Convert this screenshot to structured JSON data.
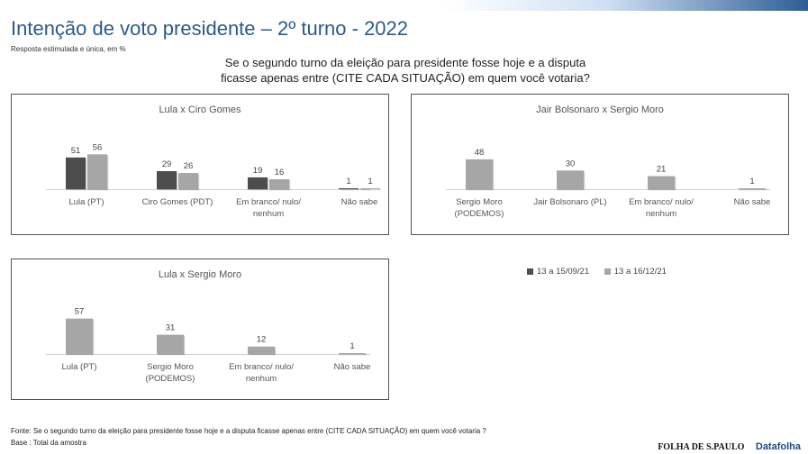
{
  "header": {
    "title": "Intenção de voto presidente – 2º turno - 2022",
    "subtitle": "Resposta estimulada e única, em %",
    "question_line1": "Se o segundo turno da eleição para presidente fosse hoje e a disputa",
    "question_line2": "ficasse apenas entre (CITE CADA SITUAÇÃO) em quem você votaria?"
  },
  "legend": {
    "items": [
      {
        "label": "13 a 15/09/21",
        "color": "#4d4d4d"
      },
      {
        "label": "13 a 16/12/21",
        "color": "#a6a6a6"
      }
    ]
  },
  "colors": {
    "title": "#2b5a8c",
    "series_dark": "#4d4d4d",
    "series_light": "#a6a6a6"
  },
  "chart_data": [
    {
      "type": "bar",
      "title": "Lula x Ciro Gomes",
      "categories": [
        [
          "Lula (PT)"
        ],
        [
          "Ciro Gomes (PDT)"
        ],
        [
          "Em branco/ nulo/",
          "nenhum"
        ],
        [
          "Não sabe"
        ]
      ],
      "series": [
        {
          "name": "13 a 15/09/21",
          "values": [
            51,
            29,
            19,
            1
          ]
        },
        {
          "name": "13 a 16/12/21",
          "values": [
            56,
            26,
            16,
            1
          ]
        }
      ]
    },
    {
      "type": "bar",
      "title": "Jair Bolsonaro x Sergio Moro",
      "categories": [
        [
          "Sergio Moro",
          "(PODEMOS)"
        ],
        [
          "Jair Bolsonaro (PL)"
        ],
        [
          "Em branco/ nulo/",
          "nenhum"
        ],
        [
          "Não sabe"
        ]
      ],
      "series": [
        {
          "name": "13 a 16/12/21",
          "values": [
            48,
            30,
            21,
            1
          ]
        }
      ]
    },
    {
      "type": "bar",
      "title": "Lula x Sergio Moro",
      "categories": [
        [
          "Lula (PT)"
        ],
        [
          "Sergio Moro",
          "(PODEMOS)"
        ],
        [
          "Em branco/ nulo/",
          "nenhum"
        ],
        [
          "Não sabe"
        ]
      ],
      "series": [
        {
          "name": "13 a 16/12/21",
          "values": [
            57,
            31,
            12,
            1
          ]
        }
      ]
    }
  ],
  "footer": {
    "source": "Fonte: Se o segundo turno da eleição para presidente fosse hoje e a disputa ficasse apenas entre (CITE CADA SITUAÇÃO) em quem você votaria ?",
    "base": "Base : Total da amostra"
  },
  "logos": {
    "folha": "FOLHA DE S.PAULO",
    "datafolha": "Datafolha"
  }
}
